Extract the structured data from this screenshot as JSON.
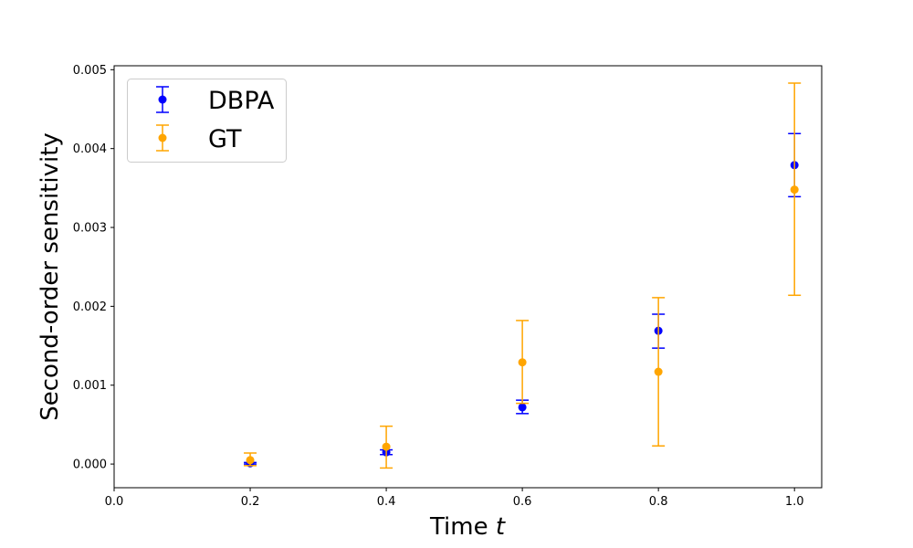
{
  "chart_data": {
    "type": "scatter",
    "xlabel": "Time",
    "xlabel_var": "t",
    "ylabel": "Second-order sensitivity",
    "xlim": [
      0.0,
      1.04
    ],
    "ylim": [
      -0.0003,
      0.00505
    ],
    "x_ticks": [
      "0.0",
      "0.2",
      "0.4",
      "0.6",
      "0.8",
      "1.0"
    ],
    "y_ticks": [
      "0.000",
      "0.001",
      "0.002",
      "0.003",
      "0.004",
      "0.005"
    ],
    "grid": false,
    "legend_position": "top-left",
    "series": [
      {
        "name": "DBPA",
        "color": "#0000ff",
        "points": [
          {
            "x": 0.2,
            "y": 1e-05,
            "lower": 0.0,
            "upper": 2e-05
          },
          {
            "x": 0.4,
            "y": 0.00015,
            "lower": 0.00012,
            "upper": 0.00018
          },
          {
            "x": 0.6,
            "y": 0.00072,
            "lower": 0.00064,
            "upper": 0.00081
          },
          {
            "x": 0.8,
            "y": 0.00169,
            "lower": 0.00147,
            "upper": 0.0019
          },
          {
            "x": 1.0,
            "y": 0.00379,
            "lower": 0.00339,
            "upper": 0.00419
          }
        ]
      },
      {
        "name": "GT",
        "color": "#ffa500",
        "points": [
          {
            "x": 0.2,
            "y": 5e-05,
            "lower": -2e-05,
            "upper": 0.00014
          },
          {
            "x": 0.4,
            "y": 0.00022,
            "lower": -5e-05,
            "upper": 0.00048
          },
          {
            "x": 0.6,
            "y": 0.00129,
            "lower": 0.00077,
            "upper": 0.00182
          },
          {
            "x": 0.8,
            "y": 0.00117,
            "lower": 0.00023,
            "upper": 0.00211
          },
          {
            "x": 1.0,
            "y": 0.00348,
            "lower": 0.00214,
            "upper": 0.00483
          }
        ]
      }
    ]
  }
}
